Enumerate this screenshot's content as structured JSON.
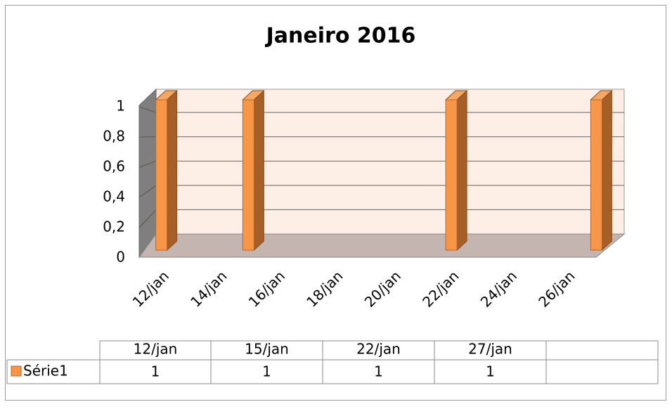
{
  "chart_data": {
    "type": "bar3d",
    "title": "Janeiro  2016",
    "categories": [
      "12/jan",
      "15/jan",
      "22/jan",
      "27/jan"
    ],
    "x": [
      12,
      15,
      22,
      27
    ],
    "series": [
      {
        "name": "Série1",
        "color": "#f79646",
        "values": [
          1,
          1,
          1,
          1
        ]
      }
    ],
    "xlim": [
      11.5,
      27.5
    ],
    "xticks": [
      {
        "value": 12,
        "label": "12/jan"
      },
      {
        "value": 14,
        "label": "14/jan"
      },
      {
        "value": 16,
        "label": "16/jan"
      },
      {
        "value": 18,
        "label": "18/jan"
      },
      {
        "value": 20,
        "label": "20/jan"
      },
      {
        "value": 22,
        "label": "22/jan"
      },
      {
        "value": 24,
        "label": "24/jan"
      },
      {
        "value": 26,
        "label": "26/jan"
      }
    ],
    "ylim": [
      0,
      1
    ],
    "yticks": [
      0,
      {
        "value": 0.2,
        "label": "0,2"
      },
      {
        "value": 0.4,
        "label": "0,4"
      },
      {
        "value": 0.6,
        "label": "0,6"
      },
      {
        "value": 0.8,
        "label": "0,8"
      },
      1
    ],
    "grid": true
  }
}
